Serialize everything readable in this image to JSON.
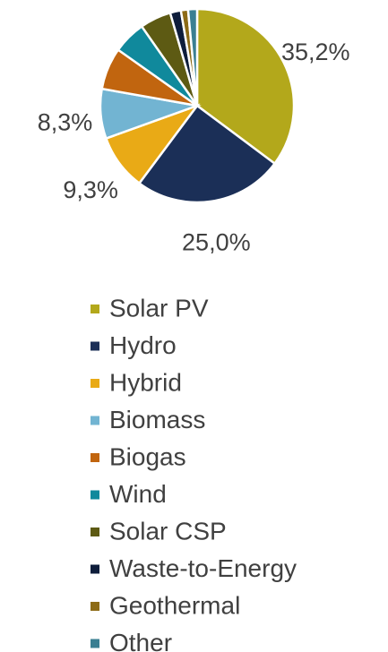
{
  "chart_data": {
    "type": "pie",
    "categories": [
      "Solar PV",
      "Hydro",
      "Hybrid",
      "Biomass",
      "Biogas",
      "Wind",
      "Solar CSP",
      "Waste-to-Energy",
      "Geothermal",
      "Other"
    ],
    "values": [
      35.2,
      25.0,
      9.3,
      8.3,
      7.0,
      5.5,
      5.2,
      1.8,
      1.2,
      1.5
    ],
    "value_labels": [
      "35,2%",
      "25,0%",
      "9,3%",
      "8,3%",
      null,
      null,
      null,
      null,
      null,
      null
    ],
    "colors": [
      "#b3a81b",
      "#1b2f57",
      "#e9aa16",
      "#72b4d2",
      "#c1650f",
      "#10899c",
      "#5d5a13",
      "#0e1d3b",
      "#8d6b16",
      "#3a7f92"
    ]
  }
}
